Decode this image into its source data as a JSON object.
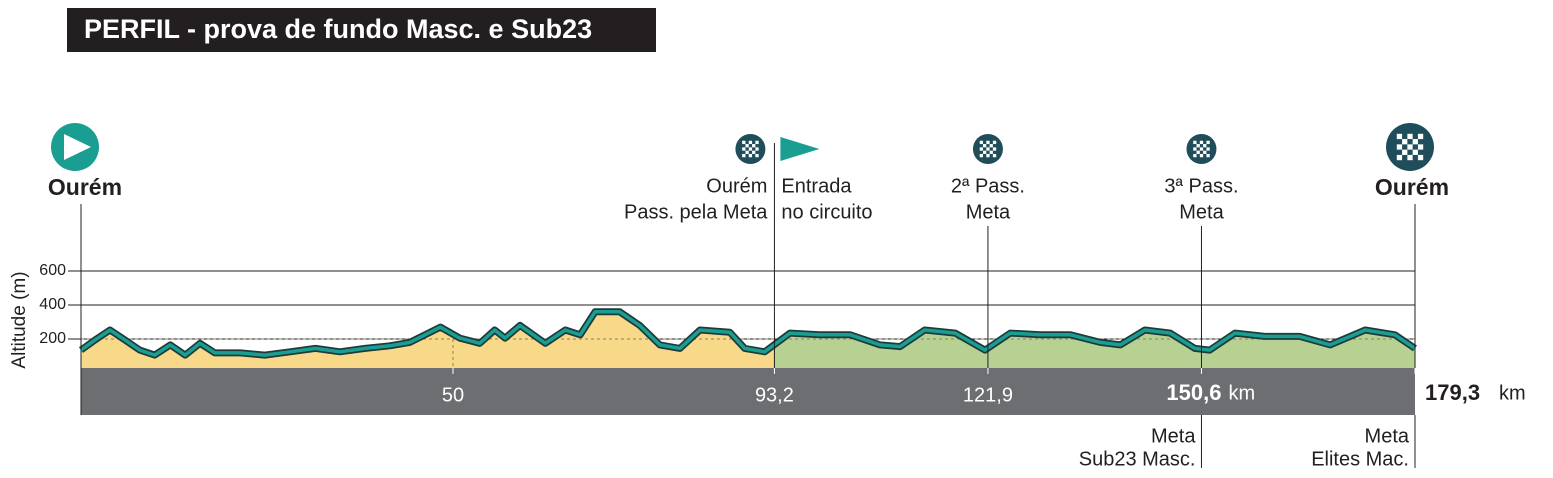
{
  "chart_data": {
    "type": "area",
    "title": "PERFIL  - prova de fundo Masc. e Sub23",
    "y_label": "Altitude (m)",
    "x_unit": "km",
    "xlim": [
      0,
      179.3
    ],
    "ylim": [
      0,
      600
    ],
    "yticks": [
      200,
      400,
      600
    ],
    "xticks": [
      50,
      {
        "value": 93.2,
        "label": "93,2"
      },
      {
        "value": 121.9,
        "label": "121,9"
      },
      {
        "value": 150.6,
        "label": "150,6"
      },
      {
        "value": 179.3,
        "label": "179,3"
      }
    ],
    "x": [
      0,
      1.9,
      3.9,
      5.9,
      7.9,
      9.9,
      12.0,
      14.0,
      16.0,
      18.0,
      21.4,
      24.7,
      28.1,
      31.5,
      34.8,
      38.2,
      41.5,
      44.2,
      48.3,
      50.9,
      53.6,
      55.6,
      57.0,
      59.0,
      62.4,
      65.1,
      67.1,
      69.1,
      72.4,
      75.1,
      77.8,
      80.5,
      83.2,
      87.2,
      89.2,
      91.9,
      95.3,
      99.3,
      103.4,
      107.4,
      110.1,
      113.4,
      117.5,
      121.5,
      124.9,
      128.9,
      133.0,
      137.0,
      139.7,
      143.0,
      146.4,
      149.7,
      151.7,
      155.1,
      159.1,
      163.8,
      167.9,
      172.6,
      176.6,
      179.3
    ],
    "values": [
      135,
      195,
      253,
      195,
      135,
      105,
      165,
      105,
      175,
      118,
      118,
      105,
      125,
      145,
      125,
      145,
      160,
      180,
      270,
      205,
      175,
      253,
      205,
      280,
      175,
      253,
      225,
      360,
      360,
      280,
      165,
      145,
      253,
      240,
      145,
      125,
      235,
      225,
      225,
      165,
      155,
      253,
      235,
      135,
      235,
      225,
      225,
      180,
      165,
      253,
      235,
      145,
      135,
      235,
      215,
      215,
      165,
      253,
      225,
      145
    ],
    "color": "#1a9e92",
    "fill_colors": [
      "#f8d98a",
      "#b7d192"
    ],
    "grid": true,
    "annotations": [
      {
        "x": 0,
        "lines": [
          "Ourém"
        ],
        "icon": "start"
      },
      {
        "x": 93.2,
        "lines": [
          "Ourém",
          "Pass. pela Meta"
        ],
        "icon": "checkered"
      },
      {
        "x": 93.2,
        "lines": [
          "Entrada",
          "no circuito"
        ],
        "icon": "flag"
      },
      {
        "x": 121.9,
        "lines": [
          "2ª Pass.",
          "Meta"
        ],
        "icon": "checkered"
      },
      {
        "x": 150.6,
        "lines": [
          "3ª Pass.",
          "Meta"
        ],
        "icon": "checkered"
      },
      {
        "x": 179.3,
        "lines": [
          "Ourém"
        ],
        "icon": "finish"
      }
    ],
    "finish_lines": [
      {
        "x": 150.6,
        "lines": [
          "Meta",
          "Sub23 Masc."
        ]
      },
      {
        "x": 179.3,
        "lines": [
          "Meta",
          "Elites Mac."
        ]
      }
    ]
  }
}
